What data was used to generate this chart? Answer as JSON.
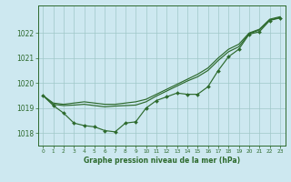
{
  "title": "Graphe pression niveau de la mer (hPa)",
  "bg_color": "#cde8f0",
  "grid_color": "#a0c8c8",
  "line_color": "#2d6a2d",
  "hours": [
    0,
    1,
    2,
    3,
    4,
    5,
    6,
    7,
    8,
    9,
    10,
    11,
    12,
    13,
    14,
    15,
    16,
    17,
    18,
    19,
    20,
    21,
    22,
    23
  ],
  "ylim": [
    1017.5,
    1023.1
  ],
  "yticks": [
    1018,
    1019,
    1020,
    1021,
    1022
  ],
  "line_wiggly": [
    1019.5,
    1019.1,
    1018.8,
    1018.4,
    1018.3,
    1018.25,
    1018.1,
    1018.05,
    1018.4,
    1018.45,
    1019.0,
    1019.3,
    1019.45,
    1019.6,
    1019.55,
    1019.55,
    1019.85,
    1020.5,
    1021.05,
    1021.35,
    1021.95,
    1022.05,
    1022.5,
    1022.6
  ],
  "line_upper": [
    1019.5,
    1019.2,
    1019.15,
    1019.2,
    1019.25,
    1019.2,
    1019.15,
    1019.15,
    1019.2,
    1019.25,
    1019.35,
    1019.55,
    1019.75,
    1019.95,
    1020.15,
    1020.35,
    1020.6,
    1021.0,
    1021.35,
    1021.55,
    1022.0,
    1022.15,
    1022.55,
    1022.65
  ],
  "line_mid": [
    1019.5,
    1019.15,
    1019.1,
    1019.12,
    1019.15,
    1019.1,
    1019.05,
    1019.08,
    1019.1,
    1019.12,
    1019.25,
    1019.48,
    1019.68,
    1019.88,
    1020.08,
    1020.25,
    1020.5,
    1020.9,
    1021.25,
    1021.45,
    1021.97,
    1022.12,
    1022.52,
    1022.62
  ]
}
